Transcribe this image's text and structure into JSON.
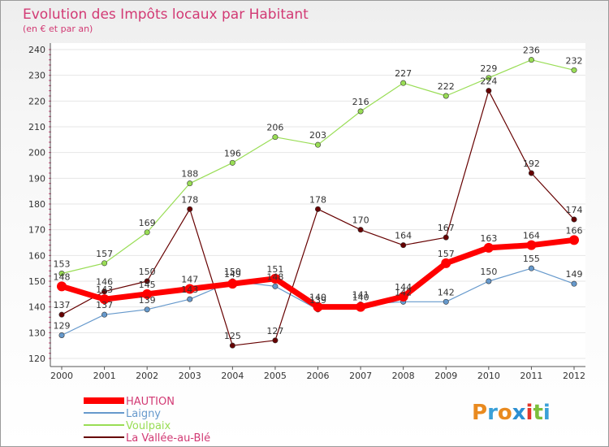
{
  "chart_data": {
    "type": "line",
    "title": "Evolution des Impôts locaux par Habitant",
    "subtitle": "(en € et par an)",
    "x": [
      "2000",
      "2001",
      "2002",
      "2003",
      "2004",
      "2005",
      "2006",
      "2007",
      "2008",
      "2009",
      "2010",
      "2011",
      "2012"
    ],
    "ylim": [
      120,
      240
    ],
    "yticks": [
      120,
      130,
      140,
      150,
      160,
      170,
      180,
      190,
      200,
      210,
      220,
      230,
      240
    ],
    "series": [
      {
        "name": "HAUTION",
        "color": "#ff0000",
        "values": [
          148,
          143,
          145,
          147,
          149,
          151,
          140,
          140,
          144,
          157,
          163,
          164,
          166
        ]
      },
      {
        "name": "Laigny",
        "color": "#6699cc",
        "values": [
          129,
          137,
          139,
          143,
          150,
          148,
          139,
          141,
          142,
          142,
          150,
          155,
          149
        ]
      },
      {
        "name": "Voulpaix",
        "color": "#99dd55",
        "values": [
          153,
          157,
          169,
          188,
          196,
          206,
          203,
          216,
          227,
          222,
          229,
          236,
          232
        ]
      },
      {
        "name": "La Vallée-au-Blé",
        "color": "#660000",
        "values": [
          137,
          146,
          150,
          178,
          125,
          127,
          178,
          170,
          164,
          167,
          224,
          192,
          174
        ]
      }
    ],
    "logo": "Proxiti"
  }
}
